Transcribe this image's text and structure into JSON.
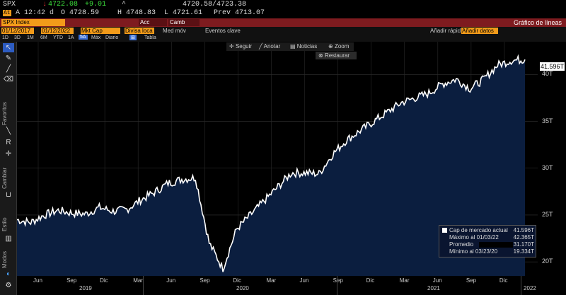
{
  "quote": {
    "ticker": "SPX",
    "change_marker": "↓",
    "last": "4722.08",
    "change": "+9.01",
    "caret": "^",
    "bid_ask": "4720.58/4723.38",
    "at_label": "At",
    "time_flag": "A",
    "time": "12:42 d",
    "open": "O 4728.59",
    "high": "H 4748.83",
    "low": "L 4721.61",
    "prev": "Prev 4713.07"
  },
  "command_bar": {
    "security": "SPX Index",
    "actions_label": "Acc",
    "change_label": "Camb",
    "chart_title": "Gráfico de líneas"
  },
  "options_bar": {
    "start_date": "01/12/2017",
    "end_date": "01/12/2022",
    "field": "Mkt Cap",
    "currency": "Divisa loca",
    "median_label": "Med móv",
    "events_label": "Eventos clave",
    "quick_add": "Añadir rápid",
    "add_data": "Añadir datos"
  },
  "periods": [
    "1D",
    "3D",
    "1M",
    "6M",
    "YTD",
    "1A",
    "5A",
    "Máx",
    "Diario",
    "Tabla"
  ],
  "periods_sel": "5A",
  "chart_buttons": {
    "follow": "Seguir",
    "annotate": "Anotar",
    "news": "Noticias",
    "zoom": "Zoom",
    "restore": "Restaurar"
  },
  "sidebar_labels": {
    "favorites": "Favoritos",
    "change": "Cambiar",
    "style": "Estilo",
    "modes": "Modos"
  },
  "icons": [
    "cursor-icon",
    "pencil-icon",
    "line-icon",
    "eraser-icon",
    "brush-icon",
    "text-icon",
    "crosshair-icon",
    "magnet-icon",
    "trash-icon",
    "gear-icon"
  ],
  "legend": {
    "rows": [
      {
        "label": "Cap de mercado actual",
        "value": "41.596T"
      },
      {
        "label": "Máximo al 01/03/22",
        "value": "42.365T"
      },
      {
        "label": "Promedio",
        "value": "31.170T"
      },
      {
        "label": "Mínimo al 03/23/20",
        "value": "19.334T"
      }
    ]
  },
  "last_value_label": "41.596T",
  "colors": {
    "area": "#0b1e3f",
    "line": "#ffffff",
    "command_bar": "#7e1b1f",
    "accent_orange": "#f29b1a",
    "positive": "#3ce03c"
  },
  "chart_data": {
    "type": "area",
    "title": "",
    "xlabel": "",
    "ylabel": "",
    "y_unit": "T",
    "ylim": [
      18.5,
      43.5
    ],
    "yticks": [
      "20T",
      "25T",
      "30T",
      "35T",
      "40T"
    ],
    "ytick_values": [
      20,
      25,
      30,
      35,
      40
    ],
    "xticks": [
      "Jun",
      "Sep",
      "Dic",
      "Mar",
      "Jun",
      "Sep",
      "Dic",
      "Mar",
      "Jun",
      "Sep",
      "Dic",
      "Mar",
      "Jun",
      "Sep",
      "Dic"
    ],
    "years": [
      "2019",
      "2020",
      "2021",
      "2022"
    ],
    "series": [
      {
        "x": [
          "2019-01",
          "2019-02",
          "2019-03",
          "2019-04",
          "2019-05",
          "2019-06",
          "2019-07",
          "2019-08",
          "2019-09",
          "2019-10",
          "2019-11",
          "2019-12",
          "2020-01",
          "2020-02",
          "2020-03",
          "2020-03b",
          "2020-04",
          "2020-05",
          "2020-06",
          "2020-07",
          "2020-08",
          "2020-09",
          "2020-10",
          "2020-11",
          "2020-12",
          "2021-01",
          "2021-02",
          "2021-03",
          "2021-04",
          "2021-05",
          "2021-06",
          "2021-07",
          "2021-08",
          "2021-09",
          "2021-10",
          "2021-11",
          "2021-12",
          "2022-01"
        ],
        "values": [
          24.5,
          24.2,
          25.0,
          25.5,
          25.2,
          25.1,
          25.8,
          25.4,
          25.6,
          26.6,
          27.4,
          28.4,
          28.8,
          29.0,
          22.0,
          19.3,
          23.5,
          25.0,
          26.5,
          28.0,
          29.5,
          29.5,
          29.4,
          31.5,
          33.0,
          34.0,
          35.0,
          36.0,
          37.0,
          37.5,
          38.0,
          39.0,
          39.5,
          38.5,
          39.5,
          41.0,
          41.5,
          41.6
        ]
      }
    ],
    "grid": true,
    "legend_position": "bottom-right"
  }
}
